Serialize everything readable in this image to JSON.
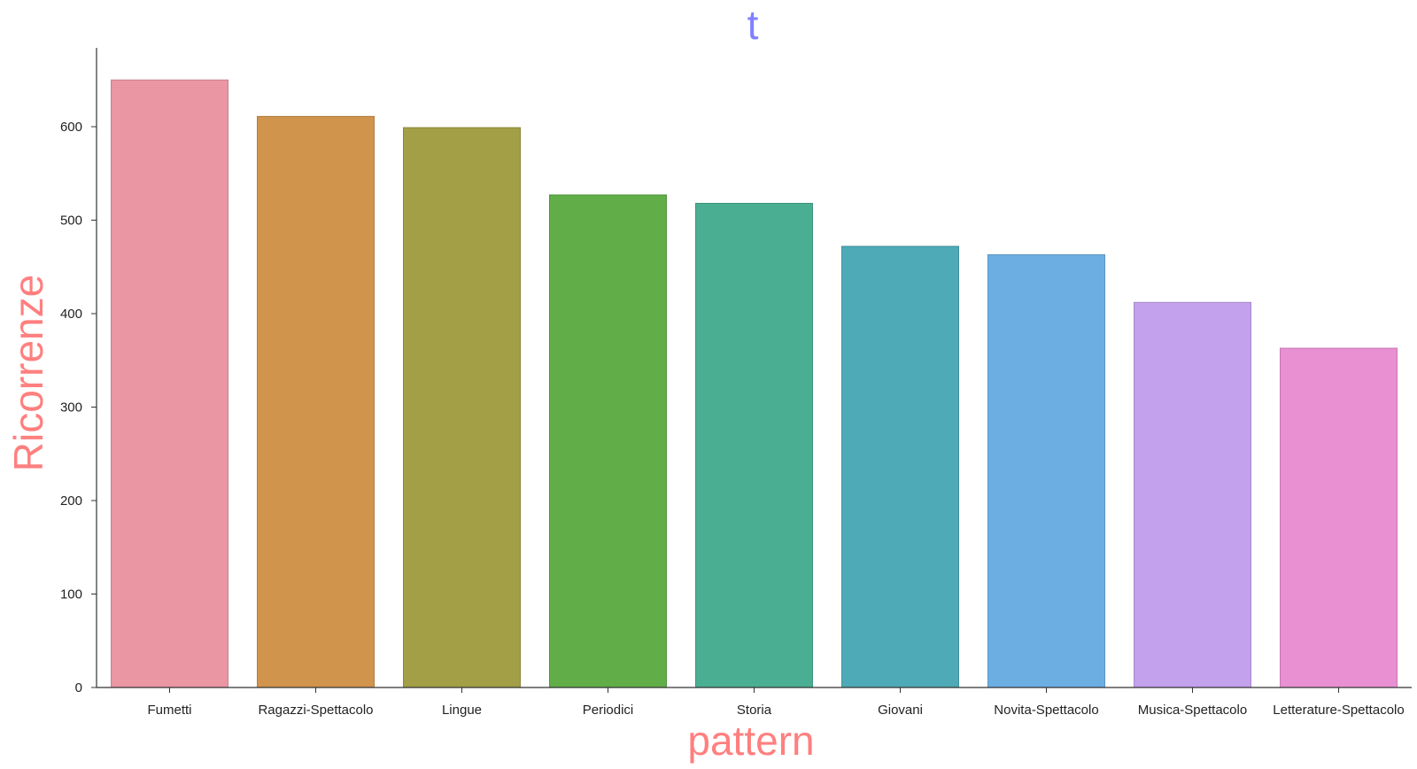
{
  "chart_data": {
    "type": "bar",
    "title": "t",
    "xlabel": "pattern",
    "ylabel": "Ricorrenze",
    "categories": [
      "Fumetti",
      "Ragazzi-Spettacolo",
      "Lingue",
      "Periodici",
      "Storia",
      "Giovani",
      "Novita-Spettacolo",
      "Musica-Spettacolo",
      "Letterature-Spettacolo"
    ],
    "values": [
      650,
      611,
      599,
      527,
      518,
      472,
      463,
      412,
      363
    ],
    "colors": [
      "#ea96a3",
      "#d0944c",
      "#a29f46",
      "#61ae48",
      "#4aae93",
      "#4eaab6",
      "#6daee2",
      "#c3a1ec",
      "#e890d2"
    ],
    "yticks": [
      0,
      100,
      200,
      300,
      400,
      500,
      600
    ],
    "ylim": [
      0,
      682
    ],
    "grid": false,
    "title_color": "#8080ff",
    "label_color": "#ff7f7f"
  }
}
